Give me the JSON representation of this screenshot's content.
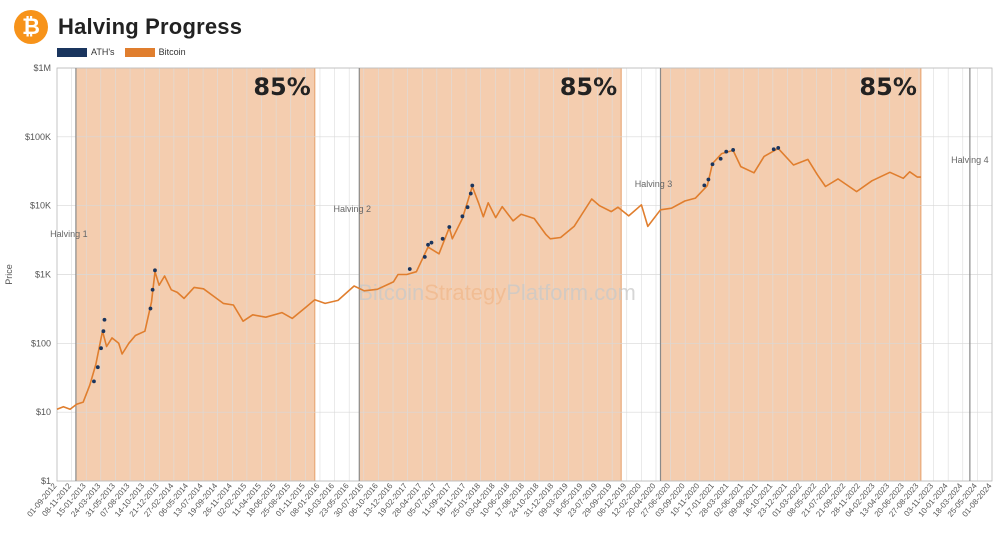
{
  "header": {
    "title": "Halving Progress",
    "logo_glyph": "₿"
  },
  "legend": [
    {
      "label": "ATH's",
      "color": "#1a355e"
    },
    {
      "label": "Bitcoin",
      "color": "#e07e2e"
    }
  ],
  "watermark": {
    "part1": "Bitcoin",
    "part2": "Strategy",
    "part3": "Platform.com"
  },
  "chart_data": {
    "type": "line",
    "title": "Halving Progress",
    "xlabel": "",
    "ylabel": "Price",
    "y_scale": "log",
    "ylim": [
      1,
      1000000
    ],
    "xlim": [
      "2012-09-01",
      "2024-08-01"
    ],
    "y_ticks": [
      {
        "v": 1,
        "label": "$1"
      },
      {
        "v": 10,
        "label": "$10"
      },
      {
        "v": 100,
        "label": "$100"
      },
      {
        "v": 1000,
        "label": "$1K"
      },
      {
        "v": 10000,
        "label": "$10K"
      },
      {
        "v": 100000,
        "label": "$100K"
      },
      {
        "v": 1000000,
        "label": "$1M"
      }
    ],
    "x_ticks": [
      "01-09-2012",
      "08-11-2012",
      "15-01-2013",
      "24-03-2013",
      "31-05-2013",
      "07-08-2013",
      "14-10-2013",
      "21-12-2013",
      "27-02-2014",
      "06-05-2014",
      "13-07-2014",
      "19-09-2014",
      "26-11-2014",
      "02-02-2015",
      "11-04-2015",
      "18-06-2015",
      "25-08-2015",
      "01-11-2015",
      "08-01-2016",
      "16-03-2016",
      "23-05-2016",
      "30-07-2016",
      "06-10-2016",
      "13-12-2016",
      "19-02-2017",
      "28-04-2017",
      "05-07-2017",
      "11-09-2017",
      "18-11-2017",
      "25-01-2018",
      "03-04-2018",
      "10-06-2018",
      "17-08-2018",
      "24-10-2018",
      "31-12-2018",
      "09-03-2019",
      "16-05-2019",
      "23-07-2019",
      "29-09-2019",
      "06-12-2019",
      "12-02-2020",
      "20-04-2020",
      "27-06-2020",
      "03-09-2020",
      "10-11-2020",
      "17-01-2021",
      "28-03-2021",
      "02-06-2021",
      "09-08-2021",
      "16-10-2021",
      "23-12-2021",
      "01-03-2022",
      "08-05-2022",
      "21-07-2022",
      "21-09-2022",
      "28-11-2022",
      "04-02-2023",
      "13-04-2023",
      "20-06-2023",
      "27-08-2023",
      "03-11-2023",
      "10-01-2024",
      "18-03-2024",
      "25-05-2024",
      "01-08-2024"
    ],
    "halvings": [
      {
        "label": "Halving 1",
        "date": "2012-11-28"
      },
      {
        "label": "Halving 2",
        "date": "2016-07-09"
      },
      {
        "label": "Halving 3",
        "date": "2020-05-11"
      },
      {
        "label": "Halving 4",
        "date": "2024-04-20"
      }
    ],
    "progress_bands": [
      {
        "start": "2012-11-28",
        "end": "2015-12-15",
        "label": "85%"
      },
      {
        "start": "2016-07-09",
        "end": "2019-11-10",
        "label": "85%"
      },
      {
        "start": "2020-05-11",
        "end": "2023-09-05",
        "label": "85%"
      }
    ],
    "series": [
      {
        "name": "Bitcoin",
        "color": "#e07e2e",
        "points": [
          [
            "2012-09-01",
            11
          ],
          [
            "2012-10-01",
            12
          ],
          [
            "2012-11-01",
            11
          ],
          [
            "2012-12-01",
            13
          ],
          [
            "2013-01-01",
            14
          ],
          [
            "2013-02-01",
            25
          ],
          [
            "2013-03-01",
            50
          ],
          [
            "2013-04-01",
            150
          ],
          [
            "2013-04-20",
            90
          ],
          [
            "2013-05-15",
            120
          ],
          [
            "2013-06-15",
            100
          ],
          [
            "2013-07-01",
            70
          ],
          [
            "2013-08-01",
            100
          ],
          [
            "2013-09-01",
            130
          ],
          [
            "2013-10-15",
            150
          ],
          [
            "2013-11-15",
            400
          ],
          [
            "2013-12-01",
            1100
          ],
          [
            "2013-12-20",
            700
          ],
          [
            "2014-01-15",
            950
          ],
          [
            "2014-02-15",
            600
          ],
          [
            "2014-03-15",
            550
          ],
          [
            "2014-04-15",
            450
          ],
          [
            "2014-06-01",
            650
          ],
          [
            "2014-07-15",
            620
          ],
          [
            "2014-09-01",
            480
          ],
          [
            "2014-10-15",
            380
          ],
          [
            "2014-12-01",
            360
          ],
          [
            "2015-01-15",
            210
          ],
          [
            "2015-03-01",
            260
          ],
          [
            "2015-05-01",
            240
          ],
          [
            "2015-07-15",
            280
          ],
          [
            "2015-09-01",
            230
          ],
          [
            "2015-11-01",
            330
          ],
          [
            "2015-12-15",
            430
          ],
          [
            "2016-02-01",
            380
          ],
          [
            "2016-04-01",
            420
          ],
          [
            "2016-06-15",
            680
          ],
          [
            "2016-08-01",
            580
          ],
          [
            "2016-10-01",
            610
          ],
          [
            "2016-12-15",
            780
          ],
          [
            "2017-01-05",
            1000
          ],
          [
            "2017-02-15",
            1000
          ],
          [
            "2017-04-01",
            1100
          ],
          [
            "2017-05-25",
            2500
          ],
          [
            "2017-07-15",
            2000
          ],
          [
            "2017-09-01",
            4800
          ],
          [
            "2017-09-15",
            3300
          ],
          [
            "2017-11-01",
            6500
          ],
          [
            "2017-12-17",
            19000
          ],
          [
            "2018-01-15",
            11000
          ],
          [
            "2018-02-06",
            6900
          ],
          [
            "2018-03-01",
            11000
          ],
          [
            "2018-04-05",
            6700
          ],
          [
            "2018-05-05",
            9700
          ],
          [
            "2018-06-25",
            6000
          ],
          [
            "2018-08-01",
            7500
          ],
          [
            "2018-10-01",
            6500
          ],
          [
            "2018-11-25",
            3800
          ],
          [
            "2018-12-15",
            3300
          ],
          [
            "2019-02-01",
            3450
          ],
          [
            "2019-04-05",
            5000
          ],
          [
            "2019-06-26",
            12500
          ],
          [
            "2019-08-01",
            10000
          ],
          [
            "2019-09-25",
            8200
          ],
          [
            "2019-10-26",
            9500
          ],
          [
            "2019-12-15",
            7100
          ],
          [
            "2020-02-12",
            10300
          ],
          [
            "2020-03-13",
            5000
          ],
          [
            "2020-05-11",
            8700
          ],
          [
            "2020-07-01",
            9200
          ],
          [
            "2020-09-01",
            11700
          ],
          [
            "2020-10-21",
            12900
          ],
          [
            "2020-12-15",
            19500
          ],
          [
            "2021-01-08",
            41000
          ],
          [
            "2021-02-20",
            57000
          ],
          [
            "2021-04-14",
            63500
          ],
          [
            "2021-05-20",
            37000
          ],
          [
            "2021-07-20",
            30000
          ],
          [
            "2021-09-05",
            52000
          ],
          [
            "2021-11-10",
            68000
          ],
          [
            "2022-01-20",
            39000
          ],
          [
            "2022-03-28",
            47000
          ],
          [
            "2022-05-12",
            28000
          ],
          [
            "2022-06-18",
            19000
          ],
          [
            "2022-08-15",
            24500
          ],
          [
            "2022-11-10",
            16000
          ],
          [
            "2023-01-20",
            23000
          ],
          [
            "2023-04-14",
            30500
          ],
          [
            "2023-06-15",
            25000
          ],
          [
            "2023-07-15",
            31000
          ],
          [
            "2023-08-20",
            26000
          ],
          [
            "2023-09-05",
            26000
          ]
        ]
      },
      {
        "name": "ATH's",
        "color": "#1a355e",
        "points": [
          [
            "2013-02-20",
            28
          ],
          [
            "2013-03-10",
            45
          ],
          [
            "2013-03-25",
            85
          ],
          [
            "2013-04-05",
            150
          ],
          [
            "2013-04-10",
            220
          ],
          [
            "2013-11-10",
            320
          ],
          [
            "2013-11-20",
            600
          ],
          [
            "2013-12-01",
            1150
          ],
          [
            "2017-03-01",
            1200
          ],
          [
            "2017-05-10",
            1800
          ],
          [
            "2017-05-25",
            2700
          ],
          [
            "2017-06-10",
            2900
          ],
          [
            "2017-08-01",
            3300
          ],
          [
            "2017-09-01",
            4900
          ],
          [
            "2017-11-01",
            7000
          ],
          [
            "2017-11-25",
            9500
          ],
          [
            "2017-12-10",
            15000
          ],
          [
            "2017-12-17",
            19600
          ],
          [
            "2020-12-01",
            19700
          ],
          [
            "2020-12-20",
            24000
          ],
          [
            "2021-01-08",
            40000
          ],
          [
            "2021-02-15",
            48000
          ],
          [
            "2021-03-13",
            61000
          ],
          [
            "2021-04-14",
            64500
          ],
          [
            "2021-10-20",
            66000
          ],
          [
            "2021-11-10",
            69000
          ]
        ]
      }
    ]
  }
}
